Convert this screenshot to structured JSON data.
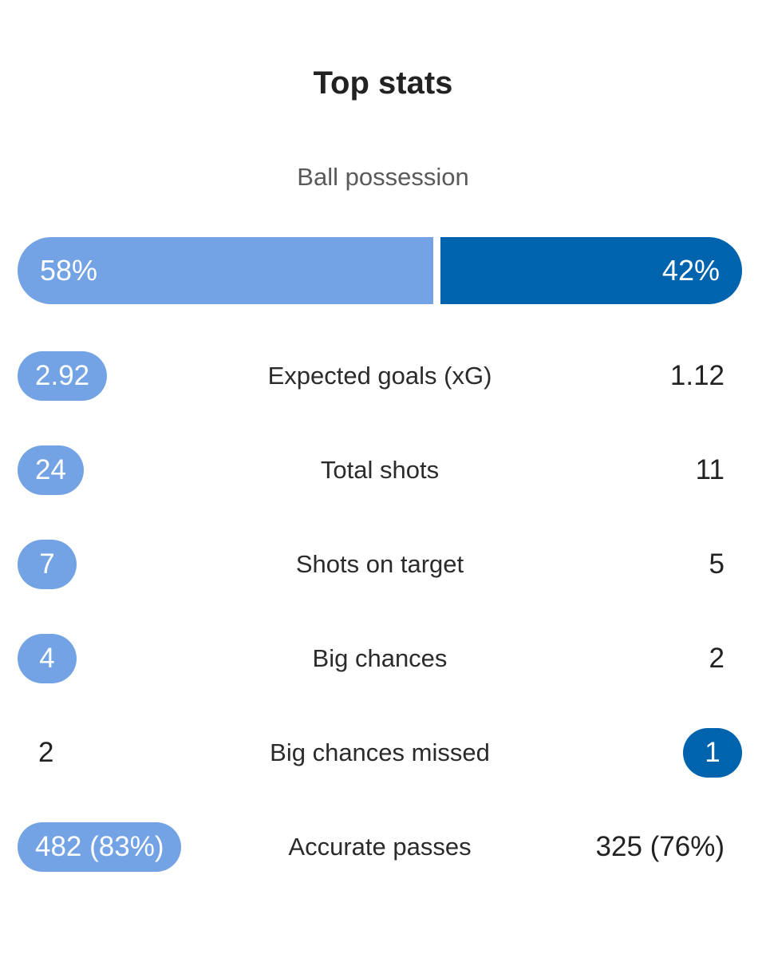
{
  "title": "Top stats",
  "possession": {
    "label": "Ball possession",
    "home": "58%",
    "away": "42%",
    "home_share": 58,
    "away_share": 42
  },
  "stats": [
    {
      "label": "Expected goals (xG)",
      "home": "2.92",
      "away": "1.12",
      "highlight": "home"
    },
    {
      "label": "Total shots",
      "home": "24",
      "away": "11",
      "highlight": "home"
    },
    {
      "label": "Shots on target",
      "home": "7",
      "away": "5",
      "highlight": "home"
    },
    {
      "label": "Big chances",
      "home": "4",
      "away": "2",
      "highlight": "home"
    },
    {
      "label": "Big chances missed",
      "home": "2",
      "away": "1",
      "highlight": "away"
    },
    {
      "label": "Accurate passes",
      "home": "482 (83%)",
      "away": "325 (76%)",
      "highlight": "home"
    }
  ],
  "colors": {
    "home": "#73a3e4",
    "away": "#0063ad"
  }
}
